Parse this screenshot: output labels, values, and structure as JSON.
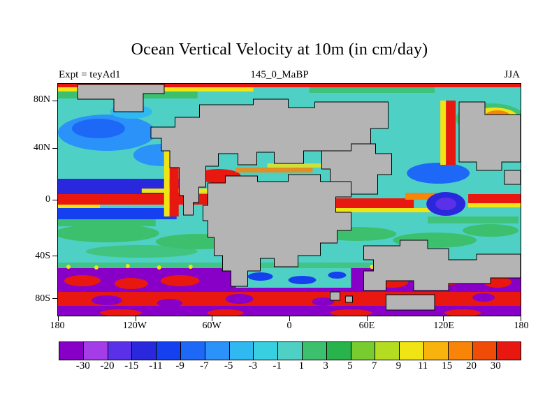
{
  "title": "Ocean Vertical Velocity at 10m (in cm/day)",
  "header": {
    "experiment": "Expt = teyAd1",
    "run_label": "145_0_MaBP",
    "season": "JJA"
  },
  "axes": {
    "lat_ticks": [
      "80N",
      "40N",
      "0",
      "40S",
      "80S"
    ],
    "lon_ticks": [
      "180",
      "120W",
      "60W",
      "0",
      "60E",
      "120E",
      "180"
    ]
  },
  "colorbar": {
    "levels": [
      "-30",
      "-20",
      "-15",
      "-11",
      "-9",
      "-7",
      "-5",
      "-3",
      "-1",
      "1",
      "3",
      "5",
      "7",
      "9",
      "11",
      "15",
      "20",
      "30"
    ],
    "colors": [
      "#8800c8",
      "#a43ce8",
      "#5a30e8",
      "#2a28dc",
      "#1440f0",
      "#1e68f8",
      "#2a92f8",
      "#30b8f0",
      "#38d0e0",
      "#4fd0c5",
      "#3cc06e",
      "#28b44a",
      "#78cc30",
      "#b4dc20",
      "#f0e414",
      "#f8b40c",
      "#f88408",
      "#f04c08",
      "#e81810"
    ]
  },
  "map": {
    "ocean_color": "#4fd0c5",
    "land_color": "#b4b4b4",
    "coast_color": "#000000"
  },
  "chart_data": {
    "type": "heatmap",
    "title": "Ocean Vertical Velocity at 10m (in cm/day)",
    "variable": "ocean vertical velocity at 10 m depth",
    "units": "cm/day",
    "experiment": "teyAd1",
    "time_period": "145_0_MaBP",
    "season": "JJA",
    "x_tick_labels": [
      "180",
      "120W",
      "60W",
      "0",
      "60E",
      "120E",
      "180"
    ],
    "y_tick_labels": [
      "80N",
      "40N",
      "0",
      "40S",
      "80S"
    ],
    "contour_levels": [
      -30,
      -20,
      -15,
      -11,
      -9,
      -7,
      -5,
      -3,
      -1,
      1,
      3,
      5,
      7,
      9,
      11,
      15,
      20,
      30
    ],
    "palette": [
      "#8800c8",
      "#a43ce8",
      "#5a30e8",
      "#2a28dc",
      "#1440f0",
      "#1e68f8",
      "#2a92f8",
      "#30b8f0",
      "#38d0e0",
      "#4fd0c5",
      "#3cc06e",
      "#28b44a",
      "#78cc30",
      "#b4dc20",
      "#f0e414",
      "#f8b40c",
      "#f88408",
      "#f04c08",
      "#e81810"
    ],
    "projection": "cylindrical lat-lon with 145 Ma paleogeography (continents in gray)",
    "legend_position": "bottom",
    "qualitative_features": "strong upwelling (red) along equator and eastern boundary coasts, downwelling (blue/purple) flanking equator and in Southern Ocean band near 80S"
  }
}
